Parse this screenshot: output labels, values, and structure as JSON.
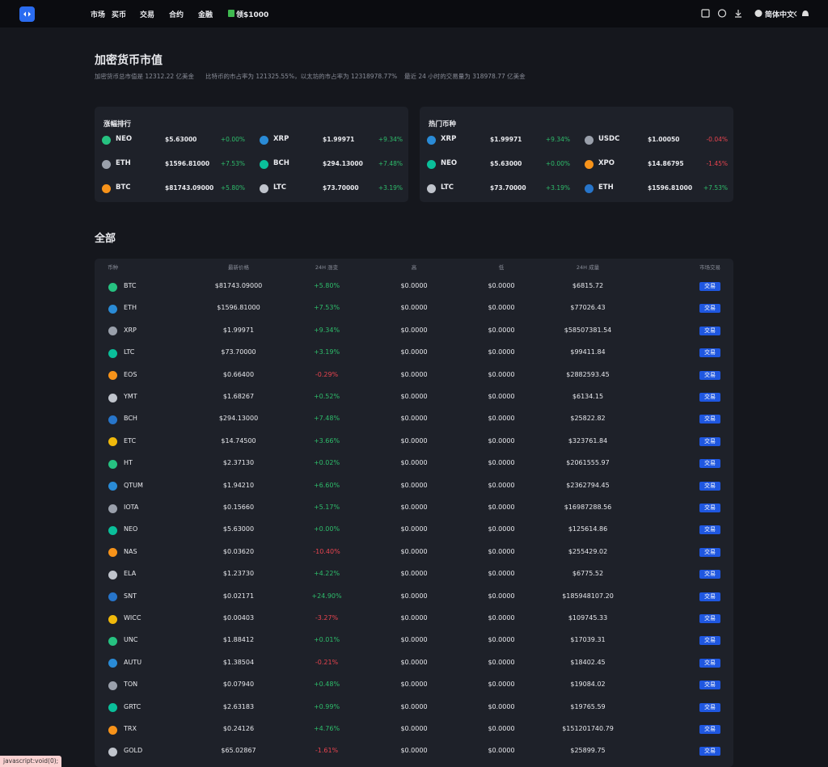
{
  "nav": {
    "items": [
      "市场",
      "买币",
      "交易",
      "合约",
      "金融",
      "领$1000"
    ],
    "language": "简体中文"
  },
  "header": {
    "title": "加密货币市值",
    "stats": [
      "加密货币总市值是 12312.22 亿美金",
      "比特币的市占率为 121325.55%，以太坊的市占率为 12318978.77%",
      "最近 24 小时的交易量为 318978.77 亿美金"
    ]
  },
  "panels": [
    {
      "title": "涨幅排行",
      "rows": [
        [
          {
            "name": "NEO",
            "price": "$5.63000",
            "change": "+0.00%"
          },
          {
            "name": "XRP",
            "price": "$1.99971",
            "change": "+9.34%"
          }
        ],
        [
          {
            "name": "ETH",
            "price": "$1596.81000",
            "change": "+7.53%"
          },
          {
            "name": "BCH",
            "price": "$294.13000",
            "change": "+7.48%"
          }
        ],
        [
          {
            "name": "BTC",
            "price": "$81743.09000",
            "change": "+5.80%"
          },
          {
            "name": "LTC",
            "price": "$73.70000",
            "change": "+3.19%"
          }
        ]
      ]
    },
    {
      "title": "热门币种",
      "rows": [
        [
          {
            "name": "XRP",
            "price": "$1.99971",
            "change": "+9.34%"
          },
          {
            "name": "USDC",
            "price": "$1.00050",
            "change": "-0.04%"
          }
        ],
        [
          {
            "name": "NEO",
            "price": "$5.63000",
            "change": "+0.00%"
          },
          {
            "name": "XPO",
            "price": "$14.86795",
            "change": "-1.45%"
          }
        ],
        [
          {
            "name": "LTC",
            "price": "$73.70000",
            "change": "+3.19%"
          },
          {
            "name": "ETH",
            "price": "$1596.81000",
            "change": "+7.53%"
          }
        ]
      ]
    }
  ],
  "table": {
    "title": "全部",
    "trade_label": "交易",
    "headers": [
      "币种",
      "最新价格",
      "24H 涨变",
      "高",
      "低",
      "24H 成量",
      "市场交易"
    ],
    "rows": [
      [
        "BTC",
        "$81743.09000",
        "+5.80%",
        "$0.0000",
        "$0.0000",
        "$6815.72"
      ],
      [
        "ETH",
        "$1596.81000",
        "+7.53%",
        "$0.0000",
        "$0.0000",
        "$77026.43"
      ],
      [
        "XRP",
        "$1.99971",
        "+9.34%",
        "$0.0000",
        "$0.0000",
        "$58507381.54"
      ],
      [
        "LTC",
        "$73.70000",
        "+3.19%",
        "$0.0000",
        "$0.0000",
        "$99411.84"
      ],
      [
        "EOS",
        "$0.66400",
        "-0.29%",
        "$0.0000",
        "$0.0000",
        "$2882593.45"
      ],
      [
        "YMT",
        "$1.68267",
        "+0.52%",
        "$0.0000",
        "$0.0000",
        "$6134.15"
      ],
      [
        "BCH",
        "$294.13000",
        "+7.48%",
        "$0.0000",
        "$0.0000",
        "$25822.82"
      ],
      [
        "ETC",
        "$14.74500",
        "+3.66%",
        "$0.0000",
        "$0.0000",
        "$323761.84"
      ],
      [
        "HT",
        "$2.37130",
        "+0.02%",
        "$0.0000",
        "$0.0000",
        "$2061555.97"
      ],
      [
        "QTUM",
        "$1.94210",
        "+6.60%",
        "$0.0000",
        "$0.0000",
        "$2362794.45"
      ],
      [
        "IOTA",
        "$0.15660",
        "+5.17%",
        "$0.0000",
        "$0.0000",
        "$16987288.56"
      ],
      [
        "NEO",
        "$5.63000",
        "+0.00%",
        "$0.0000",
        "$0.0000",
        "$125614.86"
      ],
      [
        "NAS",
        "$0.03620",
        "-10.40%",
        "$0.0000",
        "$0.0000",
        "$255429.02"
      ],
      [
        "ELA",
        "$1.23730",
        "+4.22%",
        "$0.0000",
        "$0.0000",
        "$6775.52"
      ],
      [
        "SNT",
        "$0.02171",
        "+24.90%",
        "$0.0000",
        "$0.0000",
        "$185948107.20"
      ],
      [
        "WICC",
        "$0.00403",
        "-3.27%",
        "$0.0000",
        "$0.0000",
        "$109745.33"
      ],
      [
        "UNC",
        "$1.88412",
        "+0.01%",
        "$0.0000",
        "$0.0000",
        "$17039.31"
      ],
      [
        "AUTU",
        "$1.38504",
        "-0.21%",
        "$0.0000",
        "$0.0000",
        "$18402.45"
      ],
      [
        "TON",
        "$0.07940",
        "+0.48%",
        "$0.0000",
        "$0.0000",
        "$19084.02"
      ],
      [
        "GRTC",
        "$2.63183",
        "+0.99%",
        "$0.0000",
        "$0.0000",
        "$19765.59"
      ],
      [
        "TRX",
        "$0.24126",
        "+4.76%",
        "$0.0000",
        "$0.0000",
        "$151201740.79"
      ],
      [
        "GOLD",
        "$65.02867",
        "-1.61%",
        "$0.0000",
        "$0.0000",
        "$25899.75"
      ]
    ]
  },
  "status_bar": "javascript:void(0);"
}
